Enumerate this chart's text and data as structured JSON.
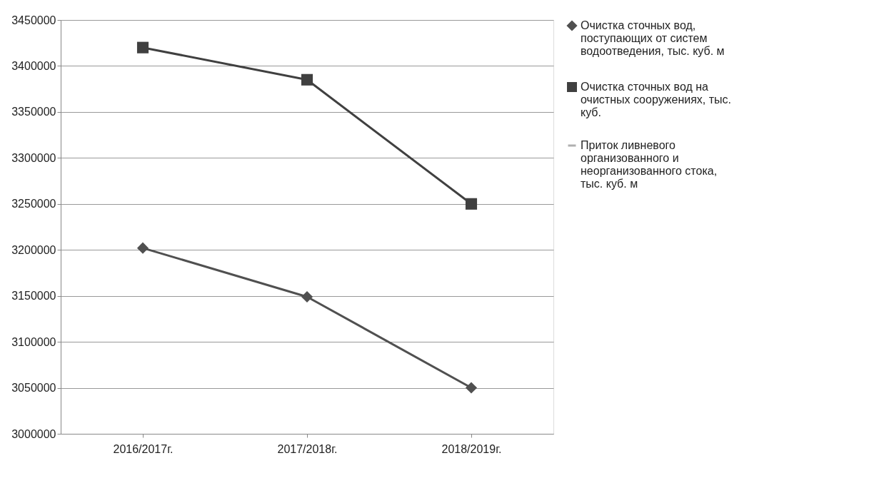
{
  "chart_data": {
    "type": "line",
    "categories": [
      "2016/2017г.",
      "2017/2018г.",
      "2018/2019г."
    ],
    "series": [
      {
        "name": "Очистка сточных вод, поступающих от систем водоотведения, тыс. куб. м",
        "color": "#505050",
        "marker": "diamond",
        "values": [
          3202000,
          3149000,
          3050000
        ]
      },
      {
        "name": "Очистка сточных вод на очистных сооружениях, тыс. куб.",
        "color": "#404040",
        "marker": "square",
        "values": [
          3420000,
          3385000,
          3250000
        ]
      },
      {
        "name": "Приток ливневого организованного и неорганизованного стока, тыс. куб. м",
        "color": "#b0b0b0",
        "marker": "none",
        "values": [
          null,
          null,
          null
        ]
      }
    ],
    "ylim": [
      3000000,
      3450000
    ],
    "yticks": [
      3000000,
      3050000,
      3100000,
      3150000,
      3200000,
      3250000,
      3300000,
      3350000,
      3400000,
      3450000
    ],
    "grid": "y",
    "legend": "right",
    "line_style": "solid"
  }
}
